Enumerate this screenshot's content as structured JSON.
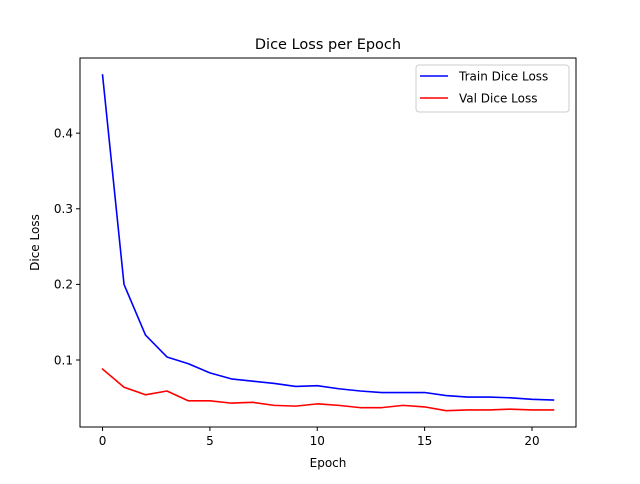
{
  "chart_data": {
    "type": "line",
    "title": "Dice Loss per Epoch",
    "xlabel": "Epoch",
    "ylabel": "Dice Loss",
    "xlim": [
      -1.05,
      22.05
    ],
    "ylim": [
      0.0114,
      0.4994
    ],
    "xticks": [
      0,
      5,
      10,
      15,
      20
    ],
    "yticks": [
      0.1,
      0.2,
      0.3,
      0.4
    ],
    "grid": false,
    "legend_position": "upper right",
    "x": [
      0,
      1,
      2,
      3,
      4,
      5,
      6,
      7,
      8,
      9,
      10,
      11,
      12,
      13,
      14,
      15,
      16,
      17,
      18,
      19,
      20,
      21
    ],
    "series": [
      {
        "name": "Train Dice Loss",
        "color": "#0000ff",
        "values": [
          0.477,
          0.2,
          0.133,
          0.104,
          0.095,
          0.083,
          0.075,
          0.072,
          0.069,
          0.065,
          0.066,
          0.062,
          0.059,
          0.057,
          0.057,
          0.057,
          0.053,
          0.051,
          0.051,
          0.05,
          0.048,
          0.047
        ]
      },
      {
        "name": "Val Dice Loss",
        "color": "#ff0000",
        "values": [
          0.088,
          0.064,
          0.054,
          0.059,
          0.046,
          0.046,
          0.043,
          0.044,
          0.04,
          0.039,
          0.042,
          0.04,
          0.037,
          0.037,
          0.04,
          0.038,
          0.033,
          0.034,
          0.034,
          0.035,
          0.034,
          0.034
        ]
      }
    ]
  }
}
